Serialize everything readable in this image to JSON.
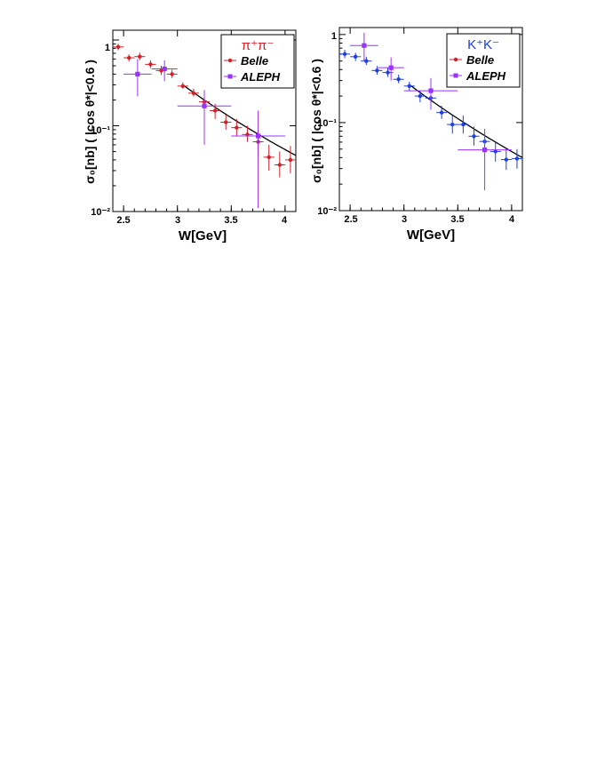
{
  "chart_data": [
    {
      "type": "scatter",
      "title": "π⁺π⁻",
      "title_color": "#d2202a",
      "xlabel": "W[GeV]",
      "ylabel": "σ₀[nb] ( |cos θ*|<0.6 )",
      "xlim": [
        2.4,
        4.1
      ],
      "ylim": [
        0.01,
        1.3
      ],
      "yscale": "log",
      "x_ticks": [
        "2.5",
        "3",
        "3.5",
        "4"
      ],
      "y_ticks": [
        "1",
        "10⁻¹",
        "10⁻²"
      ],
      "legend_position": "top-right",
      "grid": false,
      "series": [
        {
          "name": "Belle",
          "color": "#d2202a",
          "marker": "circle",
          "points": [
            {
              "x": 2.45,
              "y": 0.83,
              "xerr": 0.05,
              "ylo": 0.76,
              "yhi": 0.9
            },
            {
              "x": 2.55,
              "y": 0.62,
              "xerr": 0.05,
              "ylo": 0.56,
              "yhi": 0.68
            },
            {
              "x": 2.65,
              "y": 0.64,
              "xerr": 0.05,
              "ylo": 0.58,
              "yhi": 0.71
            },
            {
              "x": 2.75,
              "y": 0.52,
              "xerr": 0.05,
              "ylo": 0.47,
              "yhi": 0.58
            },
            {
              "x": 2.85,
              "y": 0.44,
              "xerr": 0.05,
              "ylo": 0.39,
              "yhi": 0.5
            },
            {
              "x": 2.95,
              "y": 0.4,
              "xerr": 0.05,
              "ylo": 0.36,
              "yhi": 0.45
            },
            {
              "x": 3.05,
              "y": 0.29,
              "xerr": 0.05,
              "ylo": 0.27,
              "yhi": 0.32
            },
            {
              "x": 3.15,
              "y": 0.24,
              "xerr": 0.05,
              "ylo": 0.22,
              "yhi": 0.27
            },
            {
              "x": 3.25,
              "y": 0.19,
              "xerr": 0.05,
              "ylo": 0.16,
              "yhi": 0.24
            },
            {
              "x": 3.35,
              "y": 0.15,
              "xerr": 0.05,
              "ylo": 0.12,
              "yhi": 0.18
            },
            {
              "x": 3.45,
              "y": 0.11,
              "xerr": 0.05,
              "ylo": 0.09,
              "yhi": 0.135
            },
            {
              "x": 3.55,
              "y": 0.095,
              "xerr": 0.05,
              "ylo": 0.075,
              "yhi": 0.12
            },
            {
              "x": 3.65,
              "y": 0.079,
              "xerr": 0.05,
              "ylo": 0.065,
              "yhi": 0.1
            },
            {
              "x": 3.75,
              "y": 0.065,
              "xerr": 0.05,
              "ylo": 0.045,
              "yhi": 0.09
            },
            {
              "x": 3.85,
              "y": 0.043,
              "xerr": 0.05,
              "ylo": 0.03,
              "yhi": 0.06
            },
            {
              "x": 3.95,
              "y": 0.035,
              "xerr": 0.05,
              "ylo": 0.025,
              "yhi": 0.05
            },
            {
              "x": 4.05,
              "y": 0.04,
              "xerr": 0.05,
              "ylo": 0.028,
              "yhi": 0.058
            }
          ]
        },
        {
          "name": "ALEPH",
          "color": "#9b30ff",
          "marker": "square",
          "points": [
            {
              "x": 2.63,
              "y": 0.4,
              "xerr": 0.13,
              "ylo": 0.22,
              "yhi": 0.6
            },
            {
              "x": 2.88,
              "y": 0.46,
              "xerr": 0.12,
              "ylo": 0.33,
              "yhi": 0.58
            },
            {
              "x": 3.25,
              "y": 0.17,
              "xerr": 0.25,
              "ylo": 0.06,
              "yhi": 0.26
            },
            {
              "x": 3.75,
              "y": 0.076,
              "xerr": 0.25,
              "ylo": 0.011,
              "yhi": 0.15
            }
          ]
        }
      ],
      "fit_curve": {
        "x_start": 3.05,
        "x_end": 4.1,
        "y_start": 0.3,
        "y_end": 0.045,
        "color": "#000000"
      }
    },
    {
      "type": "scatter",
      "title": "K⁺K⁻",
      "title_color": "#1f3fe0",
      "xlabel": "W[GeV]",
      "ylabel": "σ₀[nb] ( |cos θ*|<0.6 )",
      "xlim": [
        2.4,
        4.1
      ],
      "ylim": [
        0.01,
        1.2
      ],
      "yscale": "log",
      "x_ticks": [
        "2.5",
        "3",
        "3.5",
        "4"
      ],
      "y_ticks": [
        "1",
        "10⁻¹",
        "10⁻²"
      ],
      "legend_position": "top-right",
      "grid": false,
      "series": [
        {
          "name": "Belle",
          "color": "#1f3fe0",
          "marker": "circle",
          "points": [
            {
              "x": 2.45,
              "y": 0.6,
              "xerr": 0.05,
              "ylo": 0.54,
              "yhi": 0.67
            },
            {
              "x": 2.55,
              "y": 0.56,
              "xerr": 0.05,
              "ylo": 0.5,
              "yhi": 0.62
            },
            {
              "x": 2.65,
              "y": 0.5,
              "xerr": 0.05,
              "ylo": 0.45,
              "yhi": 0.56
            },
            {
              "x": 2.75,
              "y": 0.39,
              "xerr": 0.05,
              "ylo": 0.35,
              "yhi": 0.44
            },
            {
              "x": 2.85,
              "y": 0.37,
              "xerr": 0.05,
              "ylo": 0.33,
              "yhi": 0.42
            },
            {
              "x": 2.95,
              "y": 0.31,
              "xerr": 0.05,
              "ylo": 0.28,
              "yhi": 0.35
            },
            {
              "x": 3.05,
              "y": 0.26,
              "xerr": 0.05,
              "ylo": 0.23,
              "yhi": 0.29
            },
            {
              "x": 3.15,
              "y": 0.2,
              "xerr": 0.05,
              "ylo": 0.17,
              "yhi": 0.23
            },
            {
              "x": 3.25,
              "y": 0.19,
              "xerr": 0.05,
              "ylo": 0.16,
              "yhi": 0.22
            },
            {
              "x": 3.35,
              "y": 0.13,
              "xerr": 0.05,
              "ylo": 0.11,
              "yhi": 0.155
            },
            {
              "x": 3.45,
              "y": 0.095,
              "xerr": 0.05,
              "ylo": 0.075,
              "yhi": 0.12
            },
            {
              "x": 3.55,
              "y": 0.095,
              "xerr": 0.05,
              "ylo": 0.075,
              "yhi": 0.12
            },
            {
              "x": 3.65,
              "y": 0.07,
              "xerr": 0.05,
              "ylo": 0.055,
              "yhi": 0.09
            },
            {
              "x": 3.75,
              "y": 0.061,
              "xerr": 0.05,
              "ylo": 0.048,
              "yhi": 0.078
            },
            {
              "x": 3.85,
              "y": 0.047,
              "xerr": 0.05,
              "ylo": 0.036,
              "yhi": 0.06
            },
            {
              "x": 3.95,
              "y": 0.038,
              "xerr": 0.05,
              "ylo": 0.029,
              "yhi": 0.05
            },
            {
              "x": 4.05,
              "y": 0.039,
              "xerr": 0.05,
              "ylo": 0.03,
              "yhi": 0.05
            }
          ]
        },
        {
          "name": "ALEPH",
          "color": "#9b30ff",
          "marker": "square",
          "points": [
            {
              "x": 2.63,
              "y": 0.75,
              "xerr": 0.13,
              "ylo": 0.5,
              "yhi": 1.05
            },
            {
              "x": 2.88,
              "y": 0.42,
              "xerr": 0.12,
              "ylo": 0.3,
              "yhi": 0.55
            },
            {
              "x": 3.25,
              "y": 0.23,
              "xerr": 0.25,
              "ylo": 0.14,
              "yhi": 0.32
            },
            {
              "x": 3.75,
              "y": 0.049,
              "xerr": 0.25,
              "ylo": 0.017,
              "yhi": 0.085
            }
          ]
        }
      ],
      "fit_curve": {
        "x_start": 3.05,
        "x_end": 4.1,
        "y_start": 0.27,
        "y_end": 0.04,
        "color": "#000000"
      }
    }
  ]
}
